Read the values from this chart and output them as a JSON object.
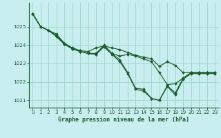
{
  "background_color": "#c8eef0",
  "grid_color": "#a0d8cc",
  "line_color": "#1a5c28",
  "marker_color": "#1a5c28",
  "xlabel": "Graphe pression niveau de la mer (hPa)",
  "ylim": [
    1020.6,
    1026.3
  ],
  "xlim": [
    -0.5,
    23.5
  ],
  "yticks": [
    1021,
    1022,
    1023,
    1024,
    1025
  ],
  "xticks": [
    0,
    1,
    2,
    3,
    4,
    5,
    6,
    7,
    8,
    9,
    10,
    11,
    12,
    13,
    14,
    15,
    16,
    17,
    18,
    19,
    20,
    21,
    22,
    23
  ],
  "series": [
    [
      1025.7,
      1025.0,
      1024.8,
      1024.6,
      1024.1,
      1023.85,
      1023.7,
      1023.65,
      1023.85,
      1023.95,
      1023.85,
      1023.75,
      1023.6,
      1023.45,
      1023.35,
      1023.25,
      1022.85,
      1023.1,
      1022.9,
      1022.5,
      1022.5,
      1022.5,
      1022.5,
      1022.5
    ],
    [
      1025.7,
      1025.0,
      1024.8,
      1024.5,
      1024.1,
      1023.8,
      1023.65,
      1023.55,
      1023.55,
      1023.95,
      1023.55,
      1023.4,
      1023.5,
      1023.4,
      1023.25,
      1023.1,
      1022.5,
      1021.85,
      1021.9,
      1022.2,
      1022.5,
      1022.5,
      1022.5,
      1022.5
    ],
    [
      1025.7,
      1025.0,
      1024.8,
      1024.5,
      1024.05,
      1023.8,
      1023.65,
      1023.55,
      1023.5,
      1024.0,
      1023.55,
      1023.2,
      1022.5,
      1021.65,
      1021.6,
      1021.1,
      1021.0,
      1021.8,
      1021.4,
      1022.2,
      1022.5,
      1022.5,
      1022.5,
      1022.5
    ],
    [
      1025.7,
      1025.0,
      1024.8,
      1024.45,
      1024.05,
      1023.8,
      1023.65,
      1023.55,
      1023.5,
      1023.9,
      1023.5,
      1023.1,
      1022.45,
      1021.6,
      1021.5,
      1021.1,
      1021.0,
      1021.75,
      1021.3,
      1022.15,
      1022.45,
      1022.45,
      1022.45,
      1022.45
    ]
  ]
}
